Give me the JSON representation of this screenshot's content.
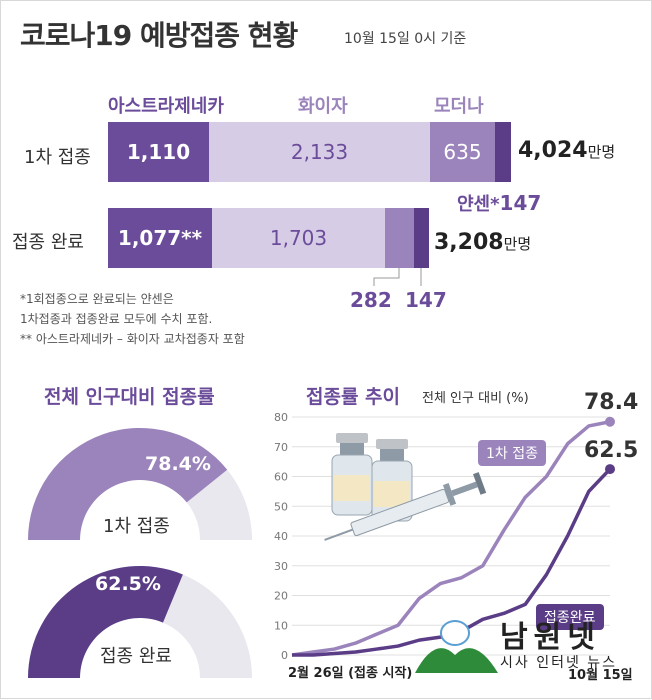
{
  "title": "코로나19 예방접종 현황",
  "as_of": "10월 15일 0시 기준",
  "headers": {
    "az": "아스트라제네카",
    "pfizer": "화이자",
    "moderna": "모더나"
  },
  "rows": {
    "first": "1차 접종",
    "full": "접종 완료"
  },
  "values": {
    "first_az": "1,110",
    "first_pfizer": "2,133",
    "first_moderna": "635",
    "first_total": "4,024",
    "janssen_label": "얀센*",
    "janssen": "147",
    "full_az": "1,077**",
    "full_pfizer": "1,703",
    "full_total": "3,208",
    "full_moderna": "282",
    "full_janssen": "147",
    "unit": "만명"
  },
  "notes": [
    "*1회접종으로 완료되는 얀센은",
    "1차접종과 접종완료 모두에 수치 포함.",
    "** 아스트라제네카 – 화이자 교차접종자 포함"
  ],
  "gauge_title": "전체 인구대비 접종률",
  "gauges": {
    "first_label": "1차 접종",
    "first_pct": "78.4%",
    "first_value": 78.4,
    "full_label": "접종 완료",
    "full_pct": "62.5%",
    "full_value": 62.5
  },
  "trend_title": "접종률 추이",
  "trend_unit": "전체 인구 대비 (%)",
  "x_start": "2월 26일 (접종 시작)",
  "x_end": "10월 15일",
  "end_first": "78.4",
  "end_full": "62.5",
  "legend_first": "1차 접종",
  "legend_full": "접종완료",
  "logo_text": "남원넷",
  "logo_sub": "시사 인터넷 뉴스",
  "colors": {
    "dark": "#6b4c9a",
    "mid": "#9b84bb",
    "light": "#d6cce6",
    "pale": "#e8e8ee",
    "janssen": "#5a3d86"
  },
  "chart_data": [
    {
      "type": "bar",
      "categories": [
        "1차 접종",
        "접종 완료"
      ],
      "series": [
        {
          "name": "아스트라제네카",
          "values": [
            1110,
            1077
          ]
        },
        {
          "name": "화이자",
          "values": [
            2133,
            1703
          ]
        },
        {
          "name": "모더나",
          "values": [
            635,
            282
          ]
        },
        {
          "name": "얀센",
          "values": [
            147,
            147
          ]
        }
      ],
      "totals": [
        4024,
        3208
      ],
      "unit": "만명"
    },
    {
      "type": "pie",
      "title": "전체 인구대비 접종률",
      "values": [
        {
          "label": "1차 접종",
          "value": 78.4
        },
        {
          "label": "접종 완료",
          "value": 62.5
        }
      ]
    },
    {
      "type": "line",
      "title": "접종률 추이",
      "ylabel": "전체 인구 대비 (%)",
      "ylim": [
        0,
        80
      ],
      "yticks": [
        0,
        10,
        20,
        30,
        40,
        50,
        60,
        70,
        80
      ],
      "grid": true,
      "x": [
        "2021-02-26",
        "2021-03-15",
        "2021-04-01",
        "2021-04-20",
        "2021-05-10",
        "2021-05-25",
        "2021-06-10",
        "2021-06-25",
        "2021-07-10",
        "2021-07-25",
        "2021-08-10",
        "2021-08-25",
        "2021-09-10",
        "2021-09-25",
        "2021-10-05",
        "2021-10-15"
      ],
      "series": [
        {
          "name": "1차 접종",
          "values": [
            0,
            1,
            2,
            4,
            7,
            10,
            19,
            24,
            26,
            30,
            42,
            53,
            60,
            71,
            77,
            78.4
          ]
        },
        {
          "name": "접종완료",
          "values": [
            0,
            0,
            0.5,
            1,
            2,
            3,
            5,
            6,
            8,
            12,
            14,
            17,
            27,
            40,
            55,
            62.5
          ]
        }
      ]
    }
  ]
}
